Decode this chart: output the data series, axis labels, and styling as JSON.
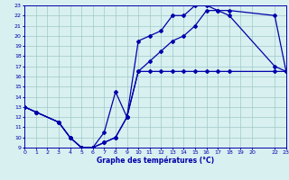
{
  "title": "Graphe des températures (°C)",
  "bg_color": "#d8f0f0",
  "grid_color": "#a0c8c8",
  "line_color": "#0000aa",
  "xlim": [
    0,
    23
  ],
  "ylim": [
    9,
    23
  ],
  "xticks": [
    0,
    1,
    2,
    3,
    4,
    5,
    6,
    7,
    8,
    9,
    10,
    11,
    12,
    13,
    14,
    15,
    16,
    17,
    18,
    19,
    20,
    22,
    23
  ],
  "yticks": [
    9,
    10,
    11,
    12,
    13,
    14,
    15,
    16,
    17,
    18,
    19,
    20,
    21,
    22,
    23
  ],
  "curve1_x": [
    0,
    1,
    3,
    4,
    5,
    6,
    7,
    8,
    9,
    10,
    11,
    12,
    13,
    14,
    15,
    16,
    17,
    18,
    22,
    23
  ],
  "curve1_y": [
    13.0,
    12.5,
    11.5,
    10.0,
    9.0,
    9.0,
    9.5,
    10.0,
    12.0,
    16.5,
    17.5,
    18.5,
    19.5,
    20.0,
    21.0,
    22.5,
    22.5,
    22.5,
    22.0,
    16.5
  ],
  "curve2_x": [
    0,
    1,
    3,
    4,
    5,
    6,
    7,
    8,
    9,
    10,
    11,
    12,
    13,
    14,
    15,
    16,
    17,
    18,
    22,
    23
  ],
  "curve2_y": [
    13.0,
    12.5,
    11.5,
    10.0,
    9.0,
    9.0,
    9.5,
    10.0,
    12.0,
    16.5,
    16.5,
    16.5,
    16.5,
    16.5,
    16.5,
    16.5,
    16.5,
    16.5,
    16.5,
    16.5
  ],
  "curve3_x": [
    0,
    1,
    3,
    4,
    5,
    6,
    7,
    8,
    9,
    10,
    11,
    12,
    13,
    14,
    15,
    16,
    17,
    18,
    22,
    23
  ],
  "curve3_y": [
    13.0,
    12.5,
    11.5,
    10.0,
    9.0,
    9.0,
    10.5,
    14.5,
    12.0,
    19.5,
    20.0,
    20.5,
    22.0,
    22.0,
    23.0,
    23.0,
    22.5,
    22.0,
    17.0,
    16.5
  ]
}
